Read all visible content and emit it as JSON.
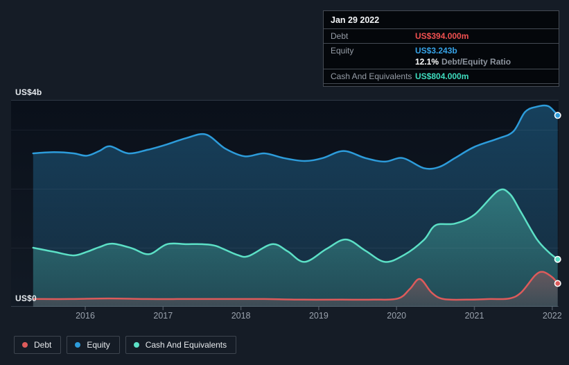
{
  "colors": {
    "page_bg": "#151c26",
    "debt": "#dd5b5b",
    "equity": "#2d9cdb",
    "cash": "#5ce0c6",
    "debt_value_text": "#f05050",
    "equity_value_text": "#36a3e8",
    "cash_value_text": "#3edcbe",
    "grid_strong": "rgba(165,180,200,0.25)",
    "grid_faint": "rgba(200,215,235,0.07)",
    "tick": "#49515c",
    "plot_bg_top": "#0a101a",
    "plot_bg_bottom": "#121a25"
  },
  "y_axis": {
    "top_label": "US$4b",
    "bottom_label": "US$0"
  },
  "tooltip": {
    "date": "Jan 29 2022",
    "debt_label": "Debt",
    "debt_value": "US$394.000m",
    "equity_label": "Equity",
    "equity_value": "US$3.243b",
    "ratio_value": "12.1%",
    "ratio_label": "Debt/Equity Ratio",
    "cash_label": "Cash And Equivalents",
    "cash_value": "US$804.000m"
  },
  "legend": {
    "debt": "Debt",
    "equity": "Equity",
    "cash": "Cash And Equivalents"
  },
  "chart_data": {
    "type": "area",
    "title": "Debt, Equity and Cash And Equivalents over time",
    "y_unit": "US$ billions",
    "x_range": [
      2015.33,
      2022.07
    ],
    "y_range": [
      0,
      4
    ],
    "y_gridline_values": [
      1,
      2,
      3
    ],
    "x_ticks": [
      2016,
      2017,
      2018,
      2019,
      2020,
      2021,
      2022
    ],
    "legend_position": "bottom-left",
    "hover_point": {
      "date": "Jan 29 2022",
      "debt_b": 0.394,
      "equity_b": 3.243,
      "cash_b": 0.804,
      "debt_equity_ratio_pct": 12.1
    },
    "series": [
      {
        "name": "Equity",
        "color": "#2d9cdb",
        "points": [
          [
            2015.33,
            2.6
          ],
          [
            2015.6,
            2.62
          ],
          [
            2015.85,
            2.6
          ],
          [
            2016.02,
            2.56
          ],
          [
            2016.18,
            2.64
          ],
          [
            2016.32,
            2.72
          ],
          [
            2016.55,
            2.6
          ],
          [
            2016.8,
            2.66
          ],
          [
            2017.02,
            2.74
          ],
          [
            2017.3,
            2.86
          ],
          [
            2017.55,
            2.92
          ],
          [
            2017.8,
            2.68
          ],
          [
            2018.05,
            2.55
          ],
          [
            2018.3,
            2.6
          ],
          [
            2018.55,
            2.52
          ],
          [
            2018.82,
            2.47
          ],
          [
            2019.05,
            2.52
          ],
          [
            2019.32,
            2.64
          ],
          [
            2019.6,
            2.52
          ],
          [
            2019.85,
            2.46
          ],
          [
            2020.08,
            2.52
          ],
          [
            2020.35,
            2.35
          ],
          [
            2020.55,
            2.37
          ],
          [
            2020.75,
            2.52
          ],
          [
            2021.0,
            2.71
          ],
          [
            2021.3,
            2.85
          ],
          [
            2021.5,
            2.97
          ],
          [
            2021.65,
            3.3
          ],
          [
            2021.8,
            3.39
          ],
          [
            2021.95,
            3.4
          ],
          [
            2022.07,
            3.243
          ]
        ]
      },
      {
        "name": "Cash And Equivalents",
        "color": "#5ce0c6",
        "points": [
          [
            2015.33,
            1.0
          ],
          [
            2015.6,
            0.93
          ],
          [
            2015.85,
            0.87
          ],
          [
            2016.02,
            0.93
          ],
          [
            2016.18,
            1.01
          ],
          [
            2016.35,
            1.07
          ],
          [
            2016.6,
            0.99
          ],
          [
            2016.82,
            0.89
          ],
          [
            2017.05,
            1.06
          ],
          [
            2017.3,
            1.06
          ],
          [
            2017.5,
            1.06
          ],
          [
            2017.68,
            1.03
          ],
          [
            2017.95,
            0.88
          ],
          [
            2018.1,
            0.86
          ],
          [
            2018.4,
            1.06
          ],
          [
            2018.6,
            0.94
          ],
          [
            2018.82,
            0.76
          ],
          [
            2019.1,
            0.98
          ],
          [
            2019.35,
            1.14
          ],
          [
            2019.6,
            0.95
          ],
          [
            2019.85,
            0.76
          ],
          [
            2020.1,
            0.88
          ],
          [
            2020.35,
            1.13
          ],
          [
            2020.5,
            1.38
          ],
          [
            2020.75,
            1.41
          ],
          [
            2021.0,
            1.56
          ],
          [
            2021.3,
            1.96
          ],
          [
            2021.45,
            1.92
          ],
          [
            2021.6,
            1.6
          ],
          [
            2021.8,
            1.15
          ],
          [
            2021.95,
            0.93
          ],
          [
            2022.07,
            0.804
          ]
        ]
      },
      {
        "name": "Debt",
        "color": "#dd5b5b",
        "points": [
          [
            2015.33,
            0.13
          ],
          [
            2015.8,
            0.13
          ],
          [
            2016.3,
            0.14
          ],
          [
            2016.8,
            0.13
          ],
          [
            2017.3,
            0.13
          ],
          [
            2017.8,
            0.13
          ],
          [
            2018.3,
            0.13
          ],
          [
            2018.8,
            0.12
          ],
          [
            2019.3,
            0.12
          ],
          [
            2019.7,
            0.12
          ],
          [
            2020.02,
            0.14
          ],
          [
            2020.17,
            0.3
          ],
          [
            2020.3,
            0.47
          ],
          [
            2020.45,
            0.24
          ],
          [
            2020.6,
            0.13
          ],
          [
            2020.9,
            0.12
          ],
          [
            2021.2,
            0.13
          ],
          [
            2021.45,
            0.14
          ],
          [
            2021.6,
            0.24
          ],
          [
            2021.78,
            0.53
          ],
          [
            2021.88,
            0.59
          ],
          [
            2022.0,
            0.5
          ],
          [
            2022.07,
            0.394
          ]
        ]
      }
    ]
  }
}
